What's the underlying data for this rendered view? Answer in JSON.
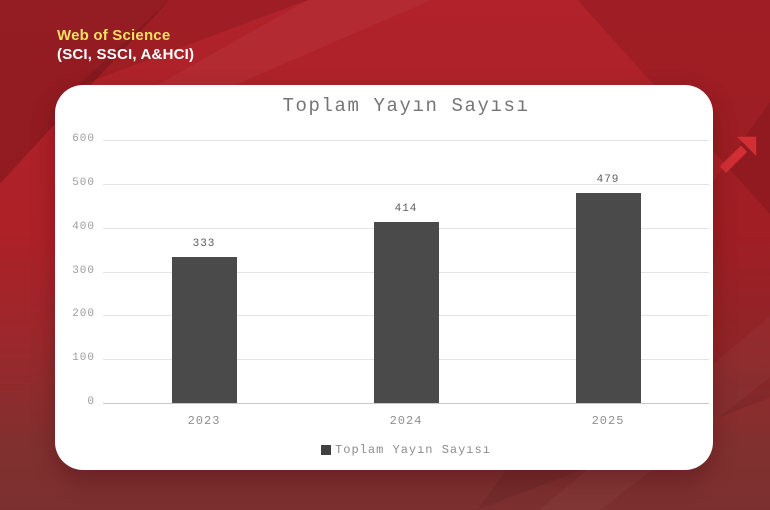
{
  "header": {
    "title": "Web of Science",
    "subtitle": "(SCI, SSCI, A&HCI)"
  },
  "chart_data": {
    "type": "bar",
    "title": "Toplam Yayın Sayısı",
    "categories": [
      "2023",
      "2024",
      "2025"
    ],
    "values": [
      333,
      414,
      479
    ],
    "legend": [
      "Toplam Yayın Sayısı"
    ],
    "legend_position": "bottom",
    "ylim": [
      0,
      600
    ],
    "yticks": [
      0,
      100,
      200,
      300,
      400,
      500,
      600
    ],
    "grid": "horizontal",
    "xlabel": "",
    "ylabel": ""
  },
  "colors": {
    "background_top": "#b1222a",
    "background_bottom": "#7b302f",
    "accent_yellow": "#f2e163",
    "card": "#ffffff",
    "bar": "#4a4a4a",
    "grid_line": "#e4e4e4",
    "axis_text": "#9c9c9c",
    "title_text": "#757575",
    "arrow": "#d22f35"
  },
  "decorations": {
    "arrow_icon": "growth-arrow-up-right"
  }
}
